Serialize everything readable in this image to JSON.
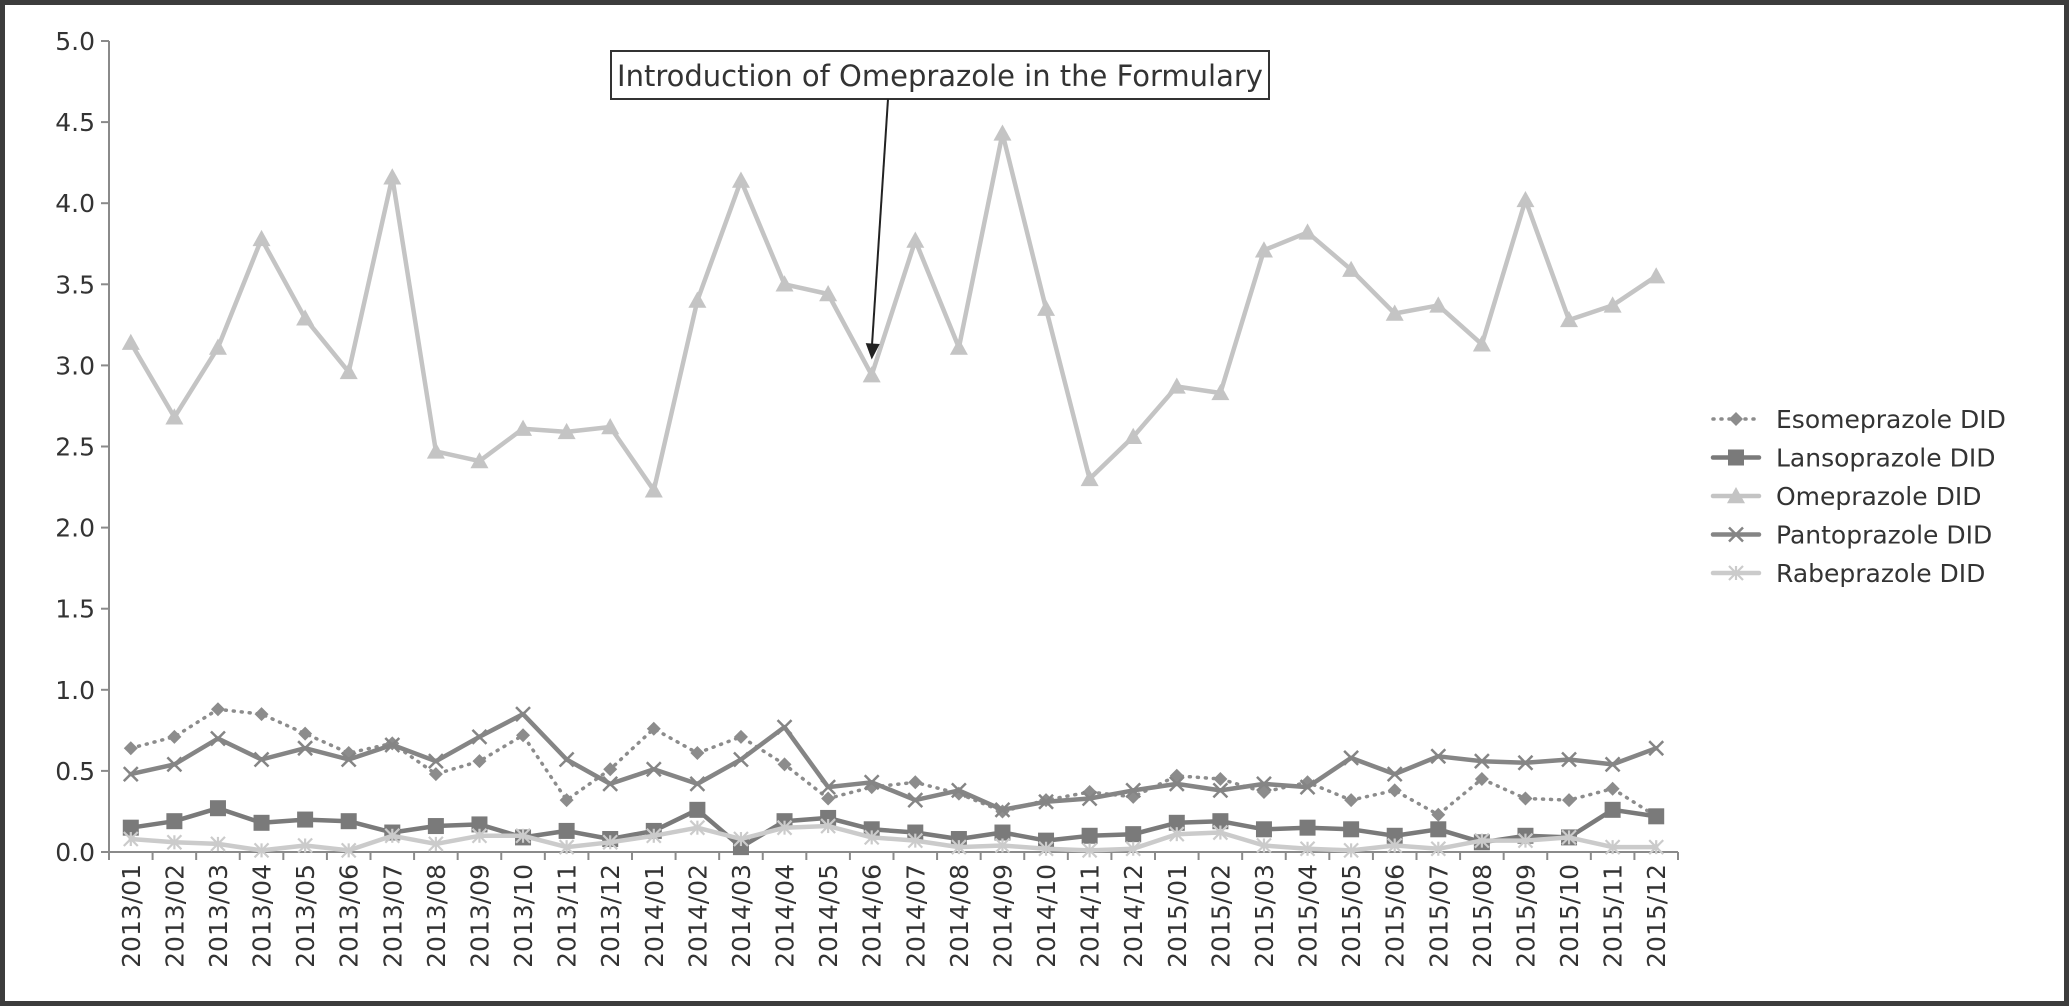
{
  "chart_data": {
    "type": "line",
    "categories": [
      "2013/01",
      "2013/02",
      "2013/03",
      "2013/04",
      "2013/05",
      "2013/06",
      "2013/07",
      "2013/08",
      "2013/09",
      "2013/10",
      "2013/11",
      "2013/12",
      "2014/01",
      "2014/02",
      "2014/03",
      "2014/04",
      "2014/05",
      "2014/06",
      "2014/07",
      "2014/08",
      "2014/09",
      "2014/10",
      "2014/11",
      "2014/12",
      "2015/01",
      "2015/02",
      "2015/03",
      "2015/04",
      "2015/05",
      "2015/06",
      "2015/07",
      "2015/08",
      "2015/09",
      "2015/10",
      "2015/11",
      "2015/12"
    ],
    "y_ticks": [
      "0.0",
      "0.5",
      "1.0",
      "1.5",
      "2.0",
      "2.5",
      "3.0",
      "3.5",
      "4.0",
      "4.5",
      "5.0"
    ],
    "ylim": [
      0,
      5
    ],
    "grid": false,
    "legend_position": "right",
    "annotation": {
      "text": "Introduction of Omeprazole in the Formulary",
      "category": "2014/06",
      "value": 2.95
    },
    "series": [
      {
        "name": "Esomeprazole DID",
        "color": "#8c8c8c",
        "line_style": "dotted",
        "marker": "diamond",
        "values": [
          0.64,
          0.71,
          0.88,
          0.85,
          0.73,
          0.61,
          0.67,
          0.48,
          0.56,
          0.72,
          0.32,
          0.51,
          0.76,
          0.61,
          0.71,
          0.54,
          0.33,
          0.4,
          0.43,
          0.36,
          0.25,
          0.32,
          0.37,
          0.34,
          0.47,
          0.45,
          0.37,
          0.43,
          0.32,
          0.38,
          0.23,
          0.45,
          0.33,
          0.32,
          0.39,
          0.22
        ]
      },
      {
        "name": "Lansoprazole DID",
        "color": "#7a7a7a",
        "line_style": "solid",
        "marker": "square",
        "values": [
          0.15,
          0.19,
          0.27,
          0.18,
          0.2,
          0.19,
          0.12,
          0.16,
          0.17,
          0.09,
          0.13,
          0.08,
          0.13,
          0.26,
          0.03,
          0.19,
          0.21,
          0.14,
          0.12,
          0.08,
          0.12,
          0.07,
          0.1,
          0.11,
          0.18,
          0.19,
          0.14,
          0.15,
          0.14,
          0.1,
          0.14,
          0.06,
          0.1,
          0.09,
          0.26,
          0.22
        ]
      },
      {
        "name": "Omeprazole DID",
        "color": "#c4c4c4",
        "line_style": "solid",
        "marker": "triangle",
        "values": [
          3.14,
          2.68,
          3.11,
          3.78,
          3.29,
          2.96,
          4.16,
          2.47,
          2.41,
          2.61,
          2.59,
          2.62,
          2.23,
          3.4,
          4.14,
          3.5,
          3.44,
          2.94,
          3.77,
          3.11,
          4.43,
          3.35,
          2.3,
          2.56,
          2.87,
          2.83,
          3.71,
          3.82,
          3.59,
          3.32,
          3.37,
          3.13,
          4.02,
          3.28,
          3.37,
          3.55
        ]
      },
      {
        "name": "Pantoprazole DID",
        "color": "#858585",
        "line_style": "solid",
        "marker": "x",
        "values": [
          0.48,
          0.54,
          0.7,
          0.57,
          0.64,
          0.57,
          0.66,
          0.56,
          0.71,
          0.85,
          0.57,
          0.42,
          0.51,
          0.42,
          0.57,
          0.77,
          0.4,
          0.43,
          0.32,
          0.38,
          0.26,
          0.31,
          0.33,
          0.38,
          0.42,
          0.38,
          0.42,
          0.4,
          0.58,
          0.48,
          0.59,
          0.56,
          0.55,
          0.57,
          0.54,
          0.64
        ]
      },
      {
        "name": "Rabeprazole DID",
        "color": "#cbcbcb",
        "line_style": "solid",
        "marker": "asterisk",
        "values": [
          0.08,
          0.06,
          0.05,
          0.01,
          0.04,
          0.01,
          0.1,
          0.05,
          0.1,
          0.1,
          0.03,
          0.06,
          0.1,
          0.15,
          0.08,
          0.15,
          0.16,
          0.09,
          0.07,
          0.03,
          0.04,
          0.02,
          0.01,
          0.02,
          0.11,
          0.12,
          0.04,
          0.02,
          0.01,
          0.04,
          0.02,
          0.07,
          0.07,
          0.09,
          0.03,
          0.03
        ]
      }
    ]
  }
}
